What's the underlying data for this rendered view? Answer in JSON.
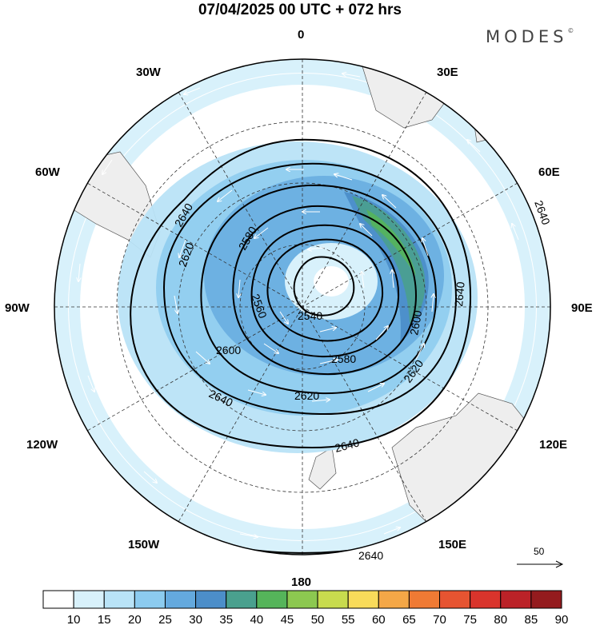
{
  "title": "07/04/2025  00 UTC  + 072 hrs",
  "brand": "MODES",
  "brand_mark": "©",
  "longitude_labels": [
    {
      "text": "0",
      "lon": 0
    },
    {
      "text": "30E",
      "lon": 30
    },
    {
      "text": "60E",
      "lon": 60
    },
    {
      "text": "90E",
      "lon": 90
    },
    {
      "text": "120E",
      "lon": 120
    },
    {
      "text": "150E",
      "lon": 150
    },
    {
      "text": "180",
      "lon": 180
    },
    {
      "text": "150W",
      "lon": 210
    },
    {
      "text": "120W",
      "lon": 240
    },
    {
      "text": "90W",
      "lon": 270
    },
    {
      "text": "60W",
      "lon": 300
    },
    {
      "text": "30W",
      "lon": 330
    }
  ],
  "contour_labels": [
    "2540",
    "2560",
    "2580",
    "2600",
    "2620",
    "2640"
  ],
  "reference_vector_label": "50",
  "colorbar": {
    "labels": [
      "10",
      "15",
      "20",
      "25",
      "30",
      "35",
      "40",
      "45",
      "50",
      "55",
      "60",
      "65",
      "70",
      "75",
      "80",
      "85",
      "90"
    ],
    "colors": [
      "#ffffff",
      "#d8f1fb",
      "#b9e3f7",
      "#8ccbef",
      "#64a9de",
      "#4c8ec9",
      "#4aa08e",
      "#55b45a",
      "#8cc850",
      "#c8db4e",
      "#f8db5a",
      "#f4a747",
      "#ef7a34",
      "#e65431",
      "#d9342c",
      "#bb2228",
      "#941b1e"
    ]
  }
}
